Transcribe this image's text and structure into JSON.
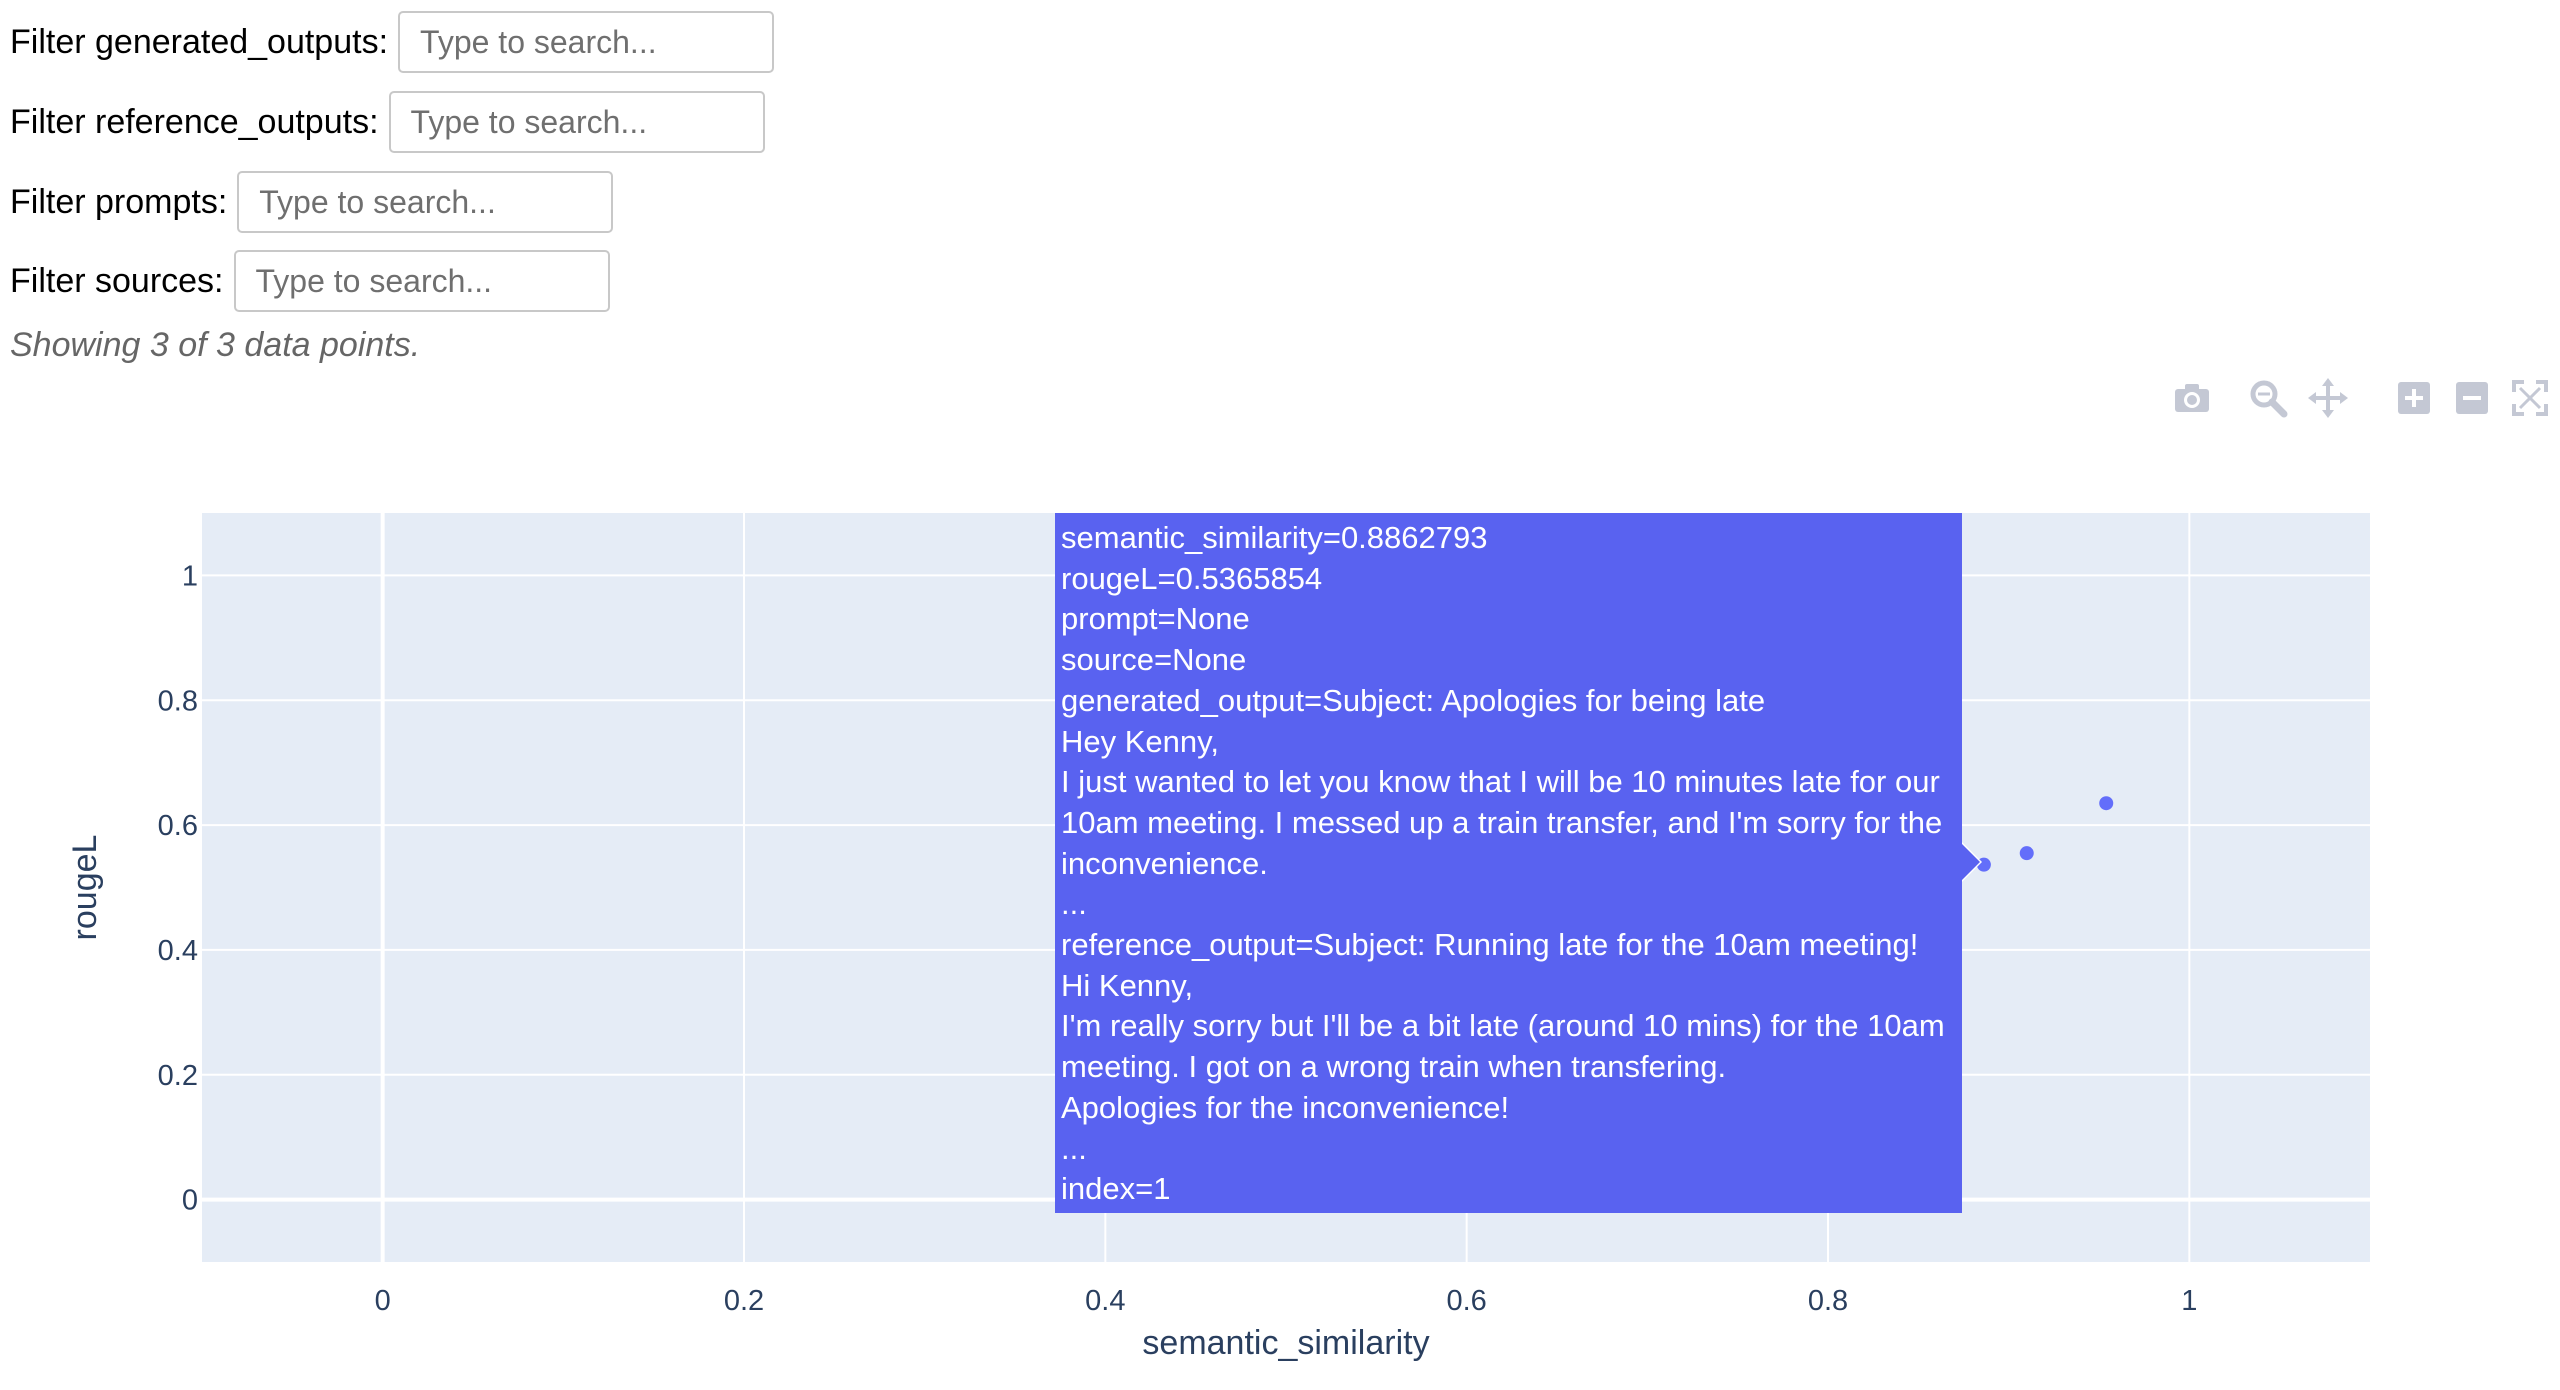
{
  "filters": [
    {
      "label": "Filter generated_outputs:",
      "placeholder": "Type to search..."
    },
    {
      "label": "Filter reference_outputs:",
      "placeholder": "Type to search..."
    },
    {
      "label": "Filter prompts:",
      "placeholder": "Type to search..."
    },
    {
      "label": "Filter sources:",
      "placeholder": "Type to search..."
    }
  ],
  "status_text": "Showing 3 of 3 data points.",
  "modebar": {
    "icons": [
      "camera-icon",
      "zoom-icon",
      "pan-icon",
      "zoom-in-icon",
      "zoom-out-icon",
      "autoscale-icon"
    ]
  },
  "chart_data": {
    "type": "scatter",
    "xlabel": "semantic_similarity",
    "ylabel": "rougeL",
    "xlim": [
      -0.1,
      1.1
    ],
    "ylim": [
      -0.1,
      1.1
    ],
    "xticks": [
      0,
      0.2,
      0.4,
      0.6,
      0.8,
      1
    ],
    "xtick_labels": [
      "0",
      "0.2",
      "0.4",
      "0.6",
      "0.8",
      "1"
    ],
    "yticks": [
      0,
      0.2,
      0.4,
      0.6,
      0.8,
      1
    ],
    "ytick_labels": [
      "0",
      "0.2",
      "0.4",
      "0.6",
      "0.8",
      "1"
    ],
    "grid": true,
    "point_color": "#636efa",
    "plot_background": "#e5ecf6",
    "points": [
      {
        "x": 0.8862793,
        "y": 0.5365854
      },
      {
        "x": 0.91,
        "y": 0.555
      },
      {
        "x": 0.954,
        "y": 0.635
      }
    ],
    "hover": {
      "point_index": 0,
      "background": "#5962f0",
      "lines": [
        "semantic_similarity=0.8862793",
        "rougeL=0.5365854",
        "prompt=None",
        "source=None",
        "generated_output=Subject: Apologies for being late",
        "Hey Kenny,",
        "I just wanted to let you know that I will be 10 minutes late for our",
        "10am meeting. I messed up a train transfer, and I'm sorry for the",
        "inconvenience.",
        "...",
        "reference_output=Subject: Running late for the 10am meeting!",
        "Hi Kenny,",
        "I'm really sorry but I'll be a bit late (around 10 mins) for the 10am",
        "meeting. I got on a wrong train when transfering.",
        "Apologies for the inconvenience!",
        "...",
        "index=1"
      ]
    }
  }
}
